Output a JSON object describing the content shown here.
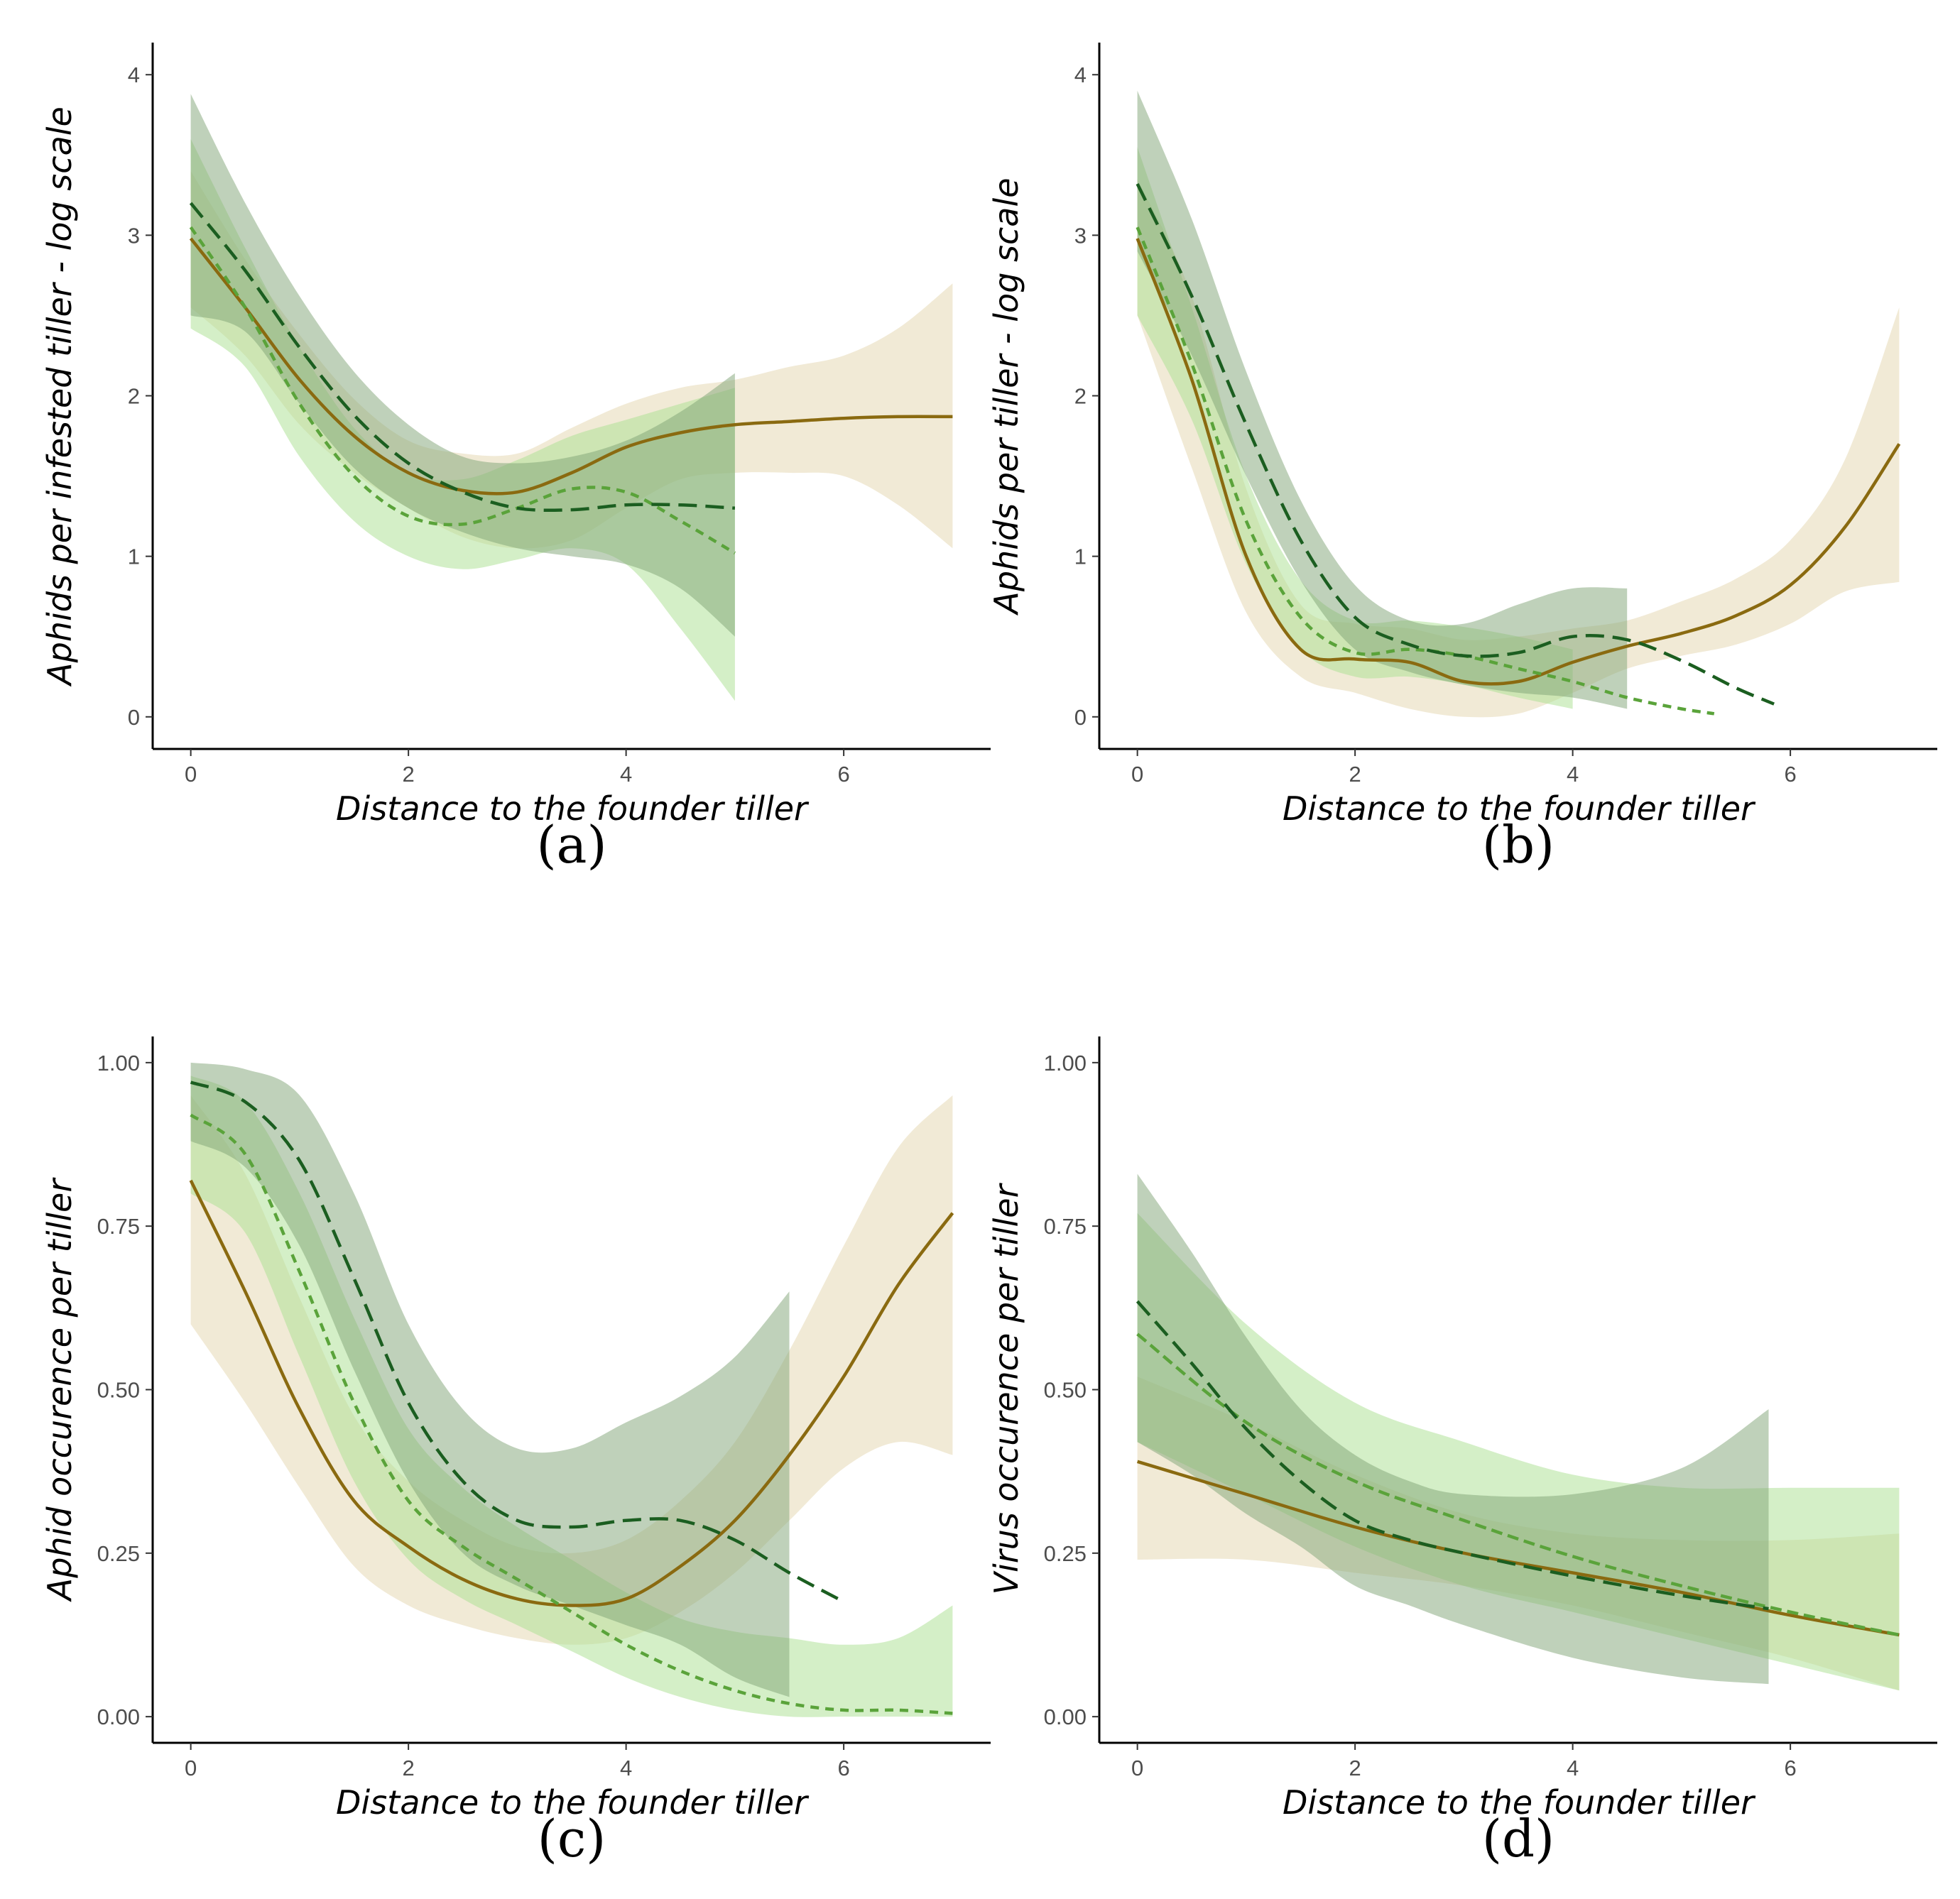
{
  "colors": {
    "olive_line": "#8a6a10",
    "olive_band": "#efe6cf",
    "dark_green_line": "#1b5e20",
    "dark_green_band": "#7fa476",
    "light_green_line": "#5aa33a",
    "light_green_band": "#a9e08f"
  },
  "chart_data": [
    {
      "type": "line",
      "panel_label": "(a)",
      "xlabel": "Distance to the founder tiller",
      "ylabel": "Aphids per infested tiller - log scale",
      "xlim": [
        -0.35,
        7.35
      ],
      "ylim": [
        -0.2,
        4.2
      ],
      "x_ticks": [
        0,
        2,
        4,
        6
      ],
      "x_tick_labels": [
        "0",
        "2",
        "4",
        "6"
      ],
      "y_ticks": [
        0,
        1,
        2,
        3,
        4
      ],
      "y_tick_labels": [
        "0",
        "1",
        "2",
        "3",
        "4"
      ],
      "grid": false,
      "series": [
        {
          "style": "solid",
          "color_key": "olive",
          "x": [
            0,
            0.5,
            1,
            1.5,
            2,
            2.5,
            3,
            3.5,
            4,
            4.5,
            5,
            5.5,
            6,
            6.5,
            7
          ],
          "y": [
            2.98,
            2.55,
            2.1,
            1.75,
            1.52,
            1.41,
            1.4,
            1.52,
            1.68,
            1.77,
            1.82,
            1.84,
            1.86,
            1.87,
            1.87
          ],
          "lower": [
            2.55,
            2.25,
            1.82,
            1.52,
            1.3,
            1.12,
            1.05,
            1.1,
            1.3,
            1.48,
            1.52,
            1.52,
            1.5,
            1.32,
            1.05
          ],
          "upper": [
            3.4,
            2.85,
            2.38,
            1.98,
            1.72,
            1.64,
            1.64,
            1.8,
            1.95,
            2.05,
            2.1,
            2.18,
            2.25,
            2.42,
            2.7
          ]
        },
        {
          "style": "long-dash",
          "color_key": "dark_green",
          "x": [
            0,
            0.5,
            1,
            1.5,
            2,
            2.5,
            3,
            3.5,
            4,
            4.5,
            5
          ],
          "y": [
            3.2,
            2.78,
            2.3,
            1.88,
            1.58,
            1.4,
            1.3,
            1.29,
            1.32,
            1.32,
            1.3
          ],
          "lower": [
            2.5,
            2.4,
            1.95,
            1.55,
            1.3,
            1.15,
            1.05,
            1.0,
            0.95,
            0.8,
            0.5
          ],
          "upper": [
            3.88,
            3.2,
            2.62,
            2.15,
            1.82,
            1.62,
            1.58,
            1.62,
            1.72,
            1.9,
            2.14
          ]
        },
        {
          "style": "short-dash",
          "color_key": "light_green",
          "x": [
            0,
            0.5,
            1,
            1.5,
            2,
            2.5,
            3,
            3.5,
            4,
            4.5,
            5
          ],
          "y": [
            3.05,
            2.55,
            1.95,
            1.5,
            1.25,
            1.2,
            1.3,
            1.42,
            1.4,
            1.22,
            1.02
          ],
          "lower": [
            2.42,
            2.18,
            1.62,
            1.22,
            1.0,
            0.92,
            0.98,
            1.05,
            0.95,
            0.55,
            0.1
          ],
          "upper": [
            3.6,
            2.92,
            2.3,
            1.8,
            1.52,
            1.48,
            1.6,
            1.75,
            1.85,
            1.95,
            2.05
          ]
        }
      ]
    },
    {
      "type": "line",
      "panel_label": "(b)",
      "xlabel": "Distance to the founder tiller",
      "ylabel": "Aphids per tiller - log scale",
      "xlim": [
        -0.35,
        7.35
      ],
      "ylim": [
        -0.2,
        4.2
      ],
      "x_ticks": [
        0,
        2,
        4,
        6
      ],
      "x_tick_labels": [
        "0",
        "2",
        "4",
        "6"
      ],
      "y_ticks": [
        0,
        1,
        2,
        3,
        4
      ],
      "y_tick_labels": [
        "0",
        "1",
        "2",
        "3",
        "4"
      ],
      "grid": false,
      "series": [
        {
          "style": "solid",
          "color_key": "olive",
          "x": [
            0,
            0.5,
            1,
            1.5,
            2,
            2.5,
            3,
            3.5,
            4,
            4.5,
            5,
            5.5,
            6,
            6.5,
            7
          ],
          "y": [
            2.98,
            2.1,
            1.0,
            0.42,
            0.36,
            0.34,
            0.22,
            0.22,
            0.34,
            0.44,
            0.52,
            0.63,
            0.82,
            1.18,
            1.7
          ],
          "lower": [
            2.5,
            1.55,
            0.65,
            0.25,
            0.15,
            0.05,
            0.0,
            0.02,
            0.15,
            0.3,
            0.38,
            0.45,
            0.58,
            0.78,
            0.84
          ],
          "upper": [
            3.35,
            2.62,
            1.42,
            0.7,
            0.58,
            0.55,
            0.48,
            0.5,
            0.55,
            0.6,
            0.72,
            0.86,
            1.1,
            1.6,
            2.55
          ]
        },
        {
          "style": "long-dash",
          "color_key": "dark_green",
          "x": [
            0,
            0.5,
            1,
            1.5,
            2,
            2.5,
            3,
            3.5,
            4,
            4.5,
            5,
            5.5,
            5.85
          ],
          "y": [
            3.32,
            2.62,
            1.82,
            1.1,
            0.62,
            0.45,
            0.38,
            0.4,
            0.5,
            0.48,
            0.35,
            0.18,
            0.08
          ],
          "lower": [
            2.9,
            2.25,
            1.5,
            0.85,
            0.42,
            0.28,
            0.2,
            0.15,
            0.12,
            0.05,
            0.0,
            0.0,
            0.0
          ],
          "upper": [
            3.9,
            3.1,
            2.15,
            1.35,
            0.82,
            0.6,
            0.58,
            0.7,
            0.8,
            0.8,
            0.8,
            0.8,
            0.8
          ],
          "band_until_x": 4.8
        },
        {
          "style": "short-dash",
          "color_key": "light_green",
          "x": [
            0,
            0.5,
            1,
            1.5,
            2,
            2.5,
            3,
            3.5,
            4,
            4.5,
            5,
            5.3
          ],
          "y": [
            3.05,
            2.2,
            1.22,
            0.62,
            0.4,
            0.42,
            0.38,
            0.3,
            0.22,
            0.12,
            0.05,
            0.02
          ],
          "lower": [
            2.5,
            1.85,
            0.95,
            0.42,
            0.25,
            0.25,
            0.2,
            0.12,
            0.05,
            0.02,
            0.0,
            0.0
          ],
          "upper": [
            3.55,
            2.55,
            1.5,
            0.85,
            0.6,
            0.6,
            0.56,
            0.5,
            0.42,
            0.35,
            0.3,
            0.3
          ],
          "band_until_x": 4.3
        }
      ]
    },
    {
      "type": "line",
      "panel_label": "(c)",
      "xlabel": "Distance to the founder tiller",
      "ylabel": "Aphid occurence per tiller",
      "xlim": [
        -0.35,
        7.35
      ],
      "ylim": [
        -0.04,
        1.04
      ],
      "x_ticks": [
        0,
        2,
        4,
        6
      ],
      "x_tick_labels": [
        "0",
        "2",
        "4",
        "6"
      ],
      "y_ticks": [
        0,
        0.25,
        0.5,
        0.75,
        1.0
      ],
      "y_tick_labels": [
        "0.00",
        "0.25",
        "0.50",
        "0.75",
        "1.00"
      ],
      "grid": false,
      "series": [
        {
          "style": "solid",
          "color_key": "olive",
          "x": [
            0,
            0.5,
            1,
            1.5,
            2,
            2.5,
            3,
            3.5,
            4,
            4.5,
            5,
            5.5,
            6,
            6.5,
            7
          ],
          "y": [
            0.82,
            0.65,
            0.47,
            0.33,
            0.26,
            0.21,
            0.18,
            0.17,
            0.18,
            0.23,
            0.3,
            0.4,
            0.52,
            0.66,
            0.77
          ],
          "lower": [
            0.6,
            0.48,
            0.35,
            0.23,
            0.17,
            0.14,
            0.12,
            0.11,
            0.12,
            0.16,
            0.22,
            0.3,
            0.38,
            0.42,
            0.4
          ],
          "upper": [
            0.95,
            0.83,
            0.64,
            0.46,
            0.36,
            0.3,
            0.26,
            0.25,
            0.27,
            0.33,
            0.42,
            0.56,
            0.72,
            0.87,
            0.95
          ]
        },
        {
          "style": "long-dash",
          "color_key": "dark_green",
          "x": [
            0,
            0.5,
            1,
            1.5,
            2,
            2.5,
            3,
            3.5,
            4,
            4.5,
            5,
            5.5,
            5.95
          ],
          "y": [
            0.97,
            0.94,
            0.85,
            0.67,
            0.48,
            0.36,
            0.3,
            0.29,
            0.3,
            0.3,
            0.27,
            0.22,
            0.18
          ],
          "lower": [
            0.88,
            0.84,
            0.72,
            0.53,
            0.36,
            0.25,
            0.2,
            0.17,
            0.14,
            0.11,
            0.06,
            0.03,
            0.0
          ],
          "upper": [
            1.0,
            0.99,
            0.95,
            0.8,
            0.6,
            0.47,
            0.41,
            0.41,
            0.45,
            0.49,
            0.55,
            0.65,
            0.65
          ],
          "band_until_x": 5.8
        },
        {
          "style": "short-dash",
          "color_key": "light_green",
          "x": [
            0,
            0.5,
            1,
            1.5,
            2,
            2.5,
            3,
            3.5,
            4,
            4.5,
            5,
            5.5,
            6,
            6.5,
            7
          ],
          "y": [
            0.92,
            0.86,
            0.68,
            0.48,
            0.33,
            0.26,
            0.21,
            0.16,
            0.11,
            0.07,
            0.04,
            0.02,
            0.01,
            0.01,
            0.005
          ],
          "lower": [
            0.8,
            0.74,
            0.55,
            0.36,
            0.24,
            0.18,
            0.14,
            0.1,
            0.06,
            0.03,
            0.01,
            0.0,
            0.0,
            0.0,
            0.0
          ],
          "upper": [
            0.98,
            0.94,
            0.8,
            0.61,
            0.44,
            0.35,
            0.29,
            0.24,
            0.19,
            0.15,
            0.13,
            0.12,
            0.11,
            0.12,
            0.17
          ]
        }
      ]
    },
    {
      "type": "line",
      "panel_label": "(d)",
      "xlabel": "Distance to the founder tiller",
      "ylabel": "Virus occurence per tiller",
      "xlim": [
        -0.35,
        7.35
      ],
      "ylim": [
        -0.04,
        1.04
      ],
      "x_ticks": [
        0,
        2,
        4,
        6
      ],
      "x_tick_labels": [
        "0",
        "2",
        "4",
        "6"
      ],
      "y_ticks": [
        0,
        0.25,
        0.5,
        0.75,
        1.0
      ],
      "y_tick_labels": [
        "0.00",
        "0.25",
        "0.50",
        "0.75",
        "1.00"
      ],
      "grid": false,
      "series": [
        {
          "style": "solid",
          "color_key": "olive",
          "x": [
            0,
            1,
            2,
            3,
            4,
            5,
            6,
            7
          ],
          "y": [
            0.39,
            0.34,
            0.29,
            0.25,
            0.22,
            0.19,
            0.155,
            0.125
          ],
          "lower": [
            0.24,
            0.24,
            0.22,
            0.2,
            0.17,
            0.13,
            0.09,
            0.04
          ],
          "upper": [
            0.52,
            0.45,
            0.37,
            0.31,
            0.28,
            0.27,
            0.27,
            0.28
          ]
        },
        {
          "style": "long-dash",
          "color_key": "dark_green",
          "x": [
            0,
            0.5,
            1,
            1.5,
            2,
            2.5,
            3,
            4,
            5,
            5.8
          ],
          "y": [
            0.635,
            0.54,
            0.44,
            0.36,
            0.3,
            0.27,
            0.25,
            0.215,
            0.185,
            0.165
          ],
          "lower": [
            0.42,
            0.37,
            0.31,
            0.26,
            0.2,
            0.17,
            0.14,
            0.09,
            0.06,
            0.05
          ],
          "upper": [
            0.83,
            0.71,
            0.58,
            0.47,
            0.4,
            0.36,
            0.34,
            0.34,
            0.38,
            0.47
          ]
        },
        {
          "style": "medium-dash",
          "color_key": "light_green",
          "x": [
            0,
            1,
            2,
            3,
            4,
            5,
            6,
            7
          ],
          "y": [
            0.585,
            0.45,
            0.36,
            0.3,
            0.245,
            0.2,
            0.16,
            0.125
          ],
          "lower": [
            0.42,
            0.34,
            0.26,
            0.2,
            0.16,
            0.12,
            0.08,
            0.04
          ],
          "upper": [
            0.77,
            0.6,
            0.48,
            0.42,
            0.37,
            0.35,
            0.35,
            0.35
          ]
        }
      ]
    }
  ]
}
